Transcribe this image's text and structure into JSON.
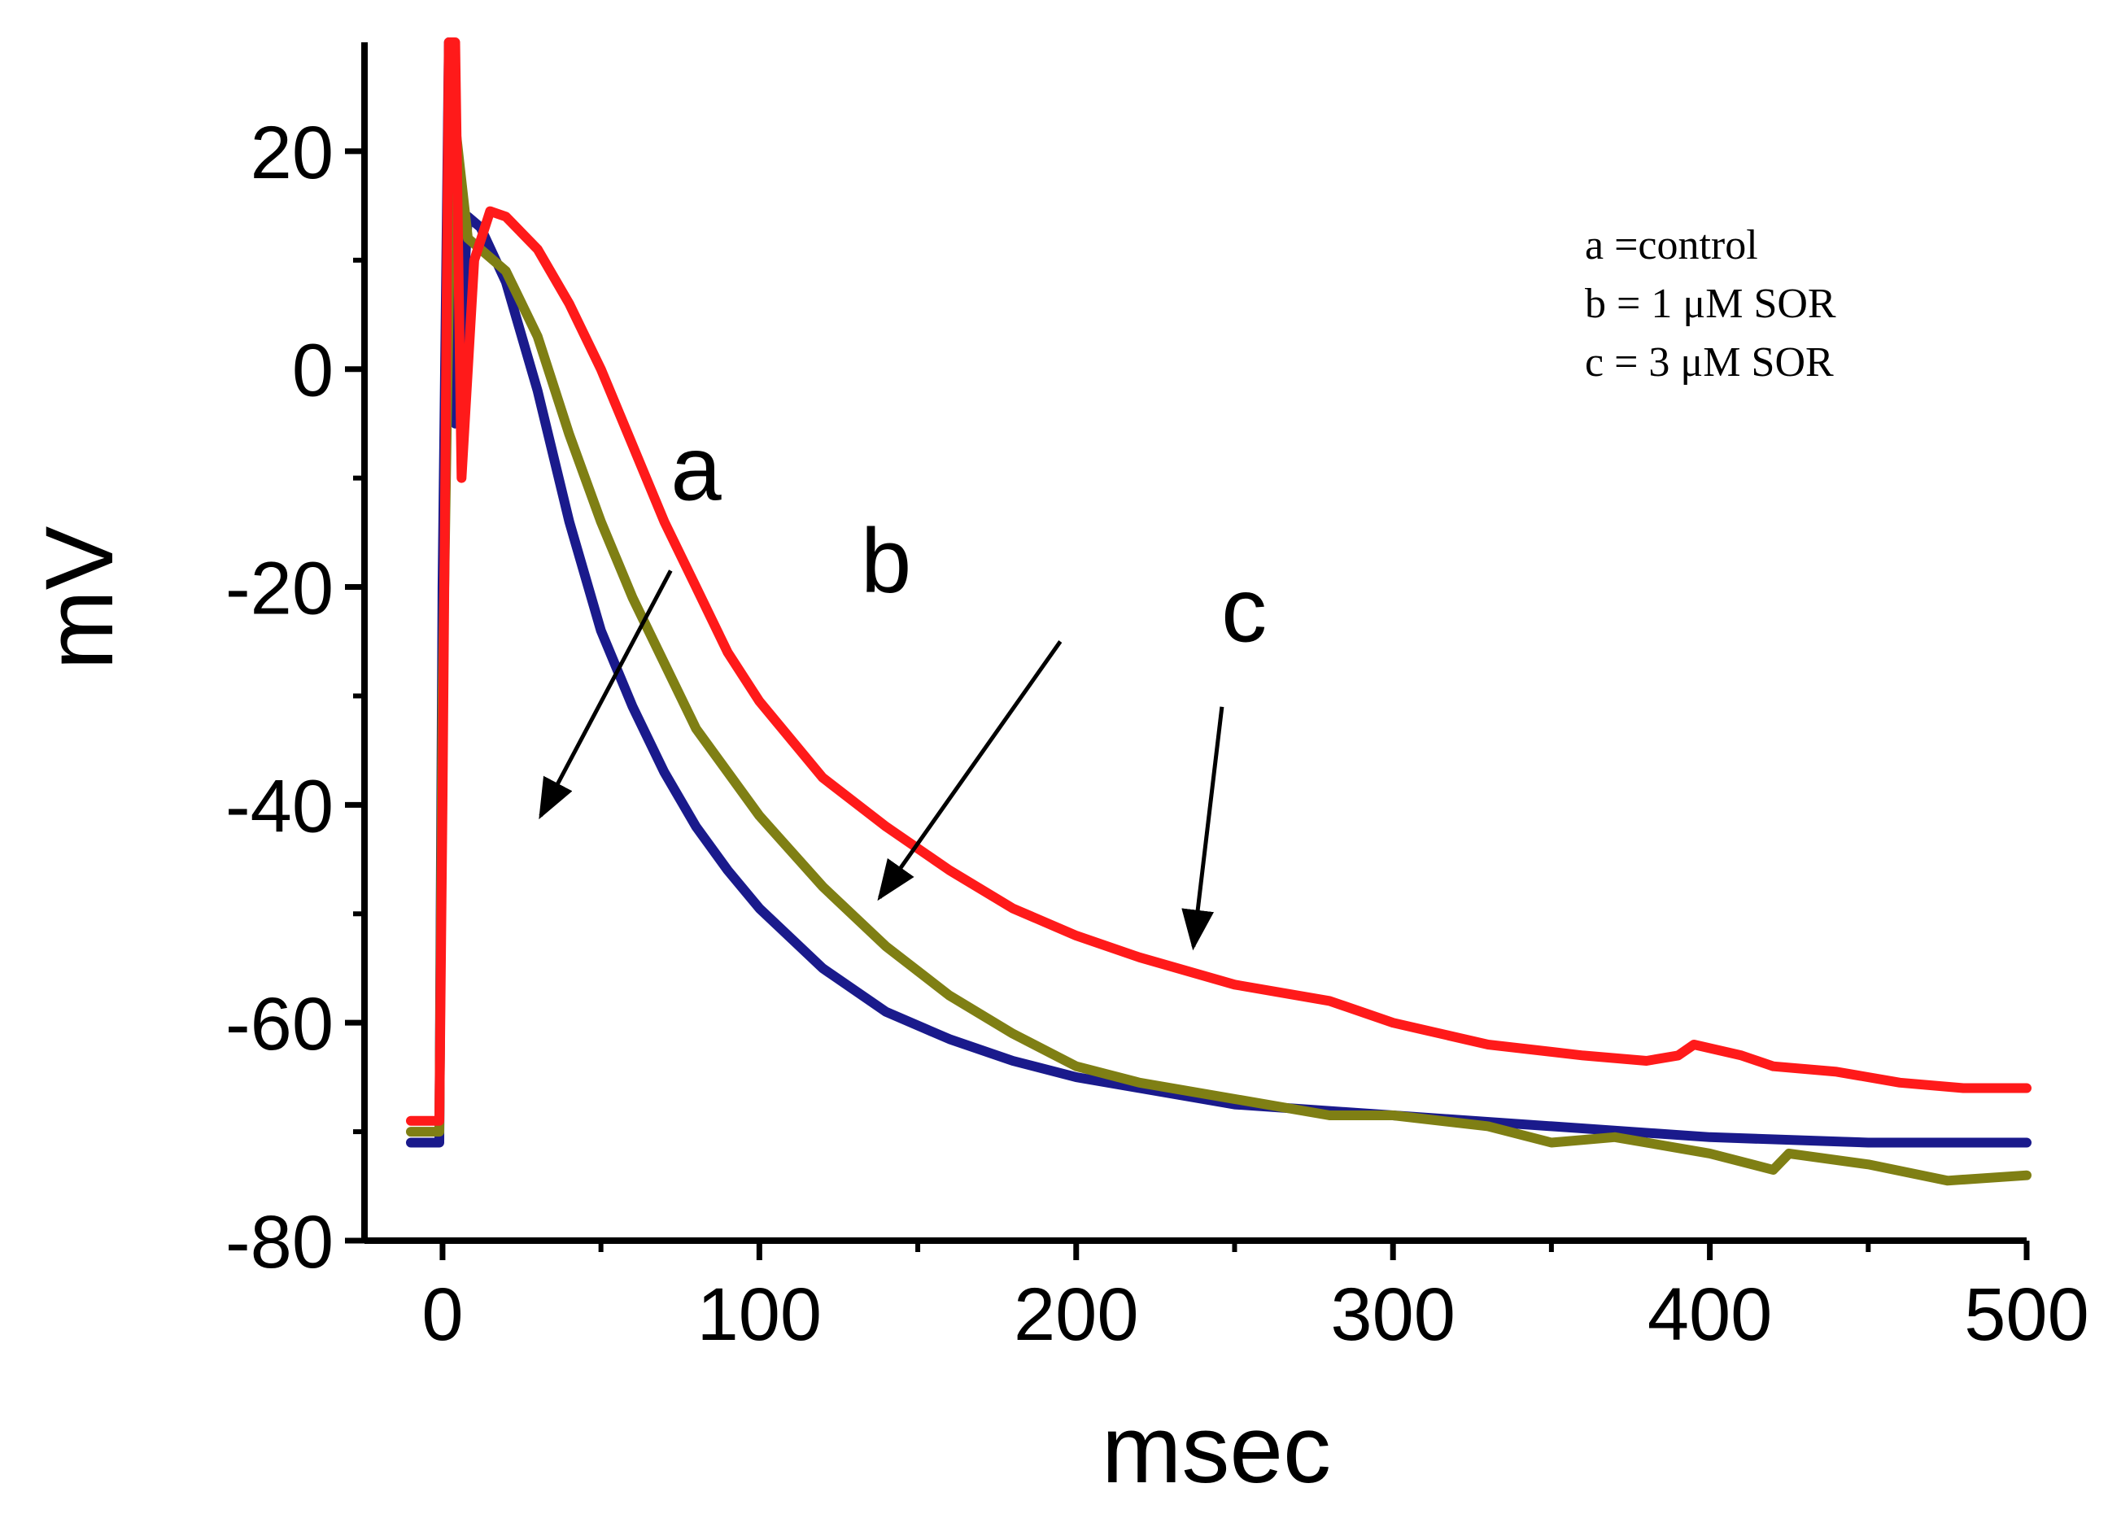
{
  "chart_data": {
    "type": "line",
    "title": "",
    "xlabel": "msec",
    "ylabel": "mV",
    "xlim": [
      -10,
      500
    ],
    "ylim": [
      -80,
      30
    ],
    "xticks": [
      0,
      100,
      200,
      300,
      400,
      500
    ],
    "xtick_labels": [
      "0",
      "100",
      "200",
      "300",
      "400",
      "500"
    ],
    "yticks": [
      -80,
      -60,
      -40,
      -20,
      0,
      20
    ],
    "ytick_labels": [
      "-80",
      "-60",
      "-40",
      "-20",
      "0",
      "20"
    ],
    "grid": false,
    "legend_position": "top-right",
    "legend": [
      "a =control",
      "b = 1 μM SOR",
      "c = 3 μM SOR"
    ],
    "series": [
      {
        "name": "a",
        "color": "#1a1a8c",
        "x": [
          -10,
          -1,
          0,
          2,
          4,
          8,
          12,
          20,
          30,
          40,
          50,
          60,
          70,
          80,
          90,
          100,
          120,
          140,
          160,
          180,
          200,
          220,
          250,
          300,
          350,
          400,
          450,
          500
        ],
        "y": [
          -71,
          -71,
          -20,
          30,
          -5,
          14,
          13,
          8,
          -2,
          -14,
          -24,
          -31,
          -37,
          -42,
          -46,
          -49.5,
          -55,
          -59,
          -61.5,
          -63.5,
          -65,
          -66,
          -67.5,
          -68.5,
          -69.5,
          -70.5,
          -71,
          -71
        ]
      },
      {
        "name": "b",
        "color": "#7f7f14",
        "x": [
          -10,
          -1,
          0,
          3,
          8,
          12,
          20,
          30,
          40,
          50,
          60,
          80,
          100,
          120,
          140,
          160,
          180,
          200,
          220,
          250,
          280,
          300,
          330,
          350,
          370,
          400,
          420,
          425,
          450,
          475,
          500
        ],
        "y": [
          -70,
          -70,
          -30,
          25,
          12,
          11,
          9,
          3,
          -6,
          -14,
          -21,
          -33,
          -41,
          -47.5,
          -53,
          -57.5,
          -61,
          -64,
          -65.5,
          -67,
          -68.5,
          -68.5,
          -69.5,
          -71,
          -70.5,
          -72,
          -73.5,
          -72,
          -73,
          -74.5,
          -74
        ]
      },
      {
        "name": "c",
        "color": "#ff1a1a",
        "x": [
          -10,
          -1,
          0,
          2,
          4,
          6,
          8,
          10,
          15,
          20,
          30,
          40,
          50,
          60,
          70,
          80,
          90,
          100,
          120,
          140,
          160,
          180,
          200,
          220,
          250,
          280,
          300,
          330,
          360,
          380,
          390,
          395,
          410,
          420,
          440,
          460,
          480,
          500
        ],
        "y": [
          -69,
          -69,
          -40,
          30,
          30,
          -10,
          0,
          10,
          14.5,
          14,
          11,
          6,
          0,
          -7,
          -14,
          -20,
          -26,
          -30.5,
          -37.5,
          -42,
          -46,
          -49.5,
          -52,
          -54,
          -56.5,
          -58,
          -60,
          -62,
          -63,
          -63.5,
          -63,
          -62,
          -63,
          -64,
          -64.5,
          -65.5,
          -66,
          -66
        ]
      }
    ],
    "annotations": [
      {
        "label": "a",
        "text_at": [
          80,
          -12
        ],
        "arrow_from": [
          72,
          -18.5
        ],
        "arrow_to": [
          31,
          -41
        ]
      },
      {
        "label": "b",
        "text_at": [
          140,
          -20.5
        ],
        "arrow_from": [
          195,
          -25
        ],
        "arrow_to": [
          138,
          -48.5
        ]
      },
      {
        "label": "c",
        "text_at": [
          253,
          -25
        ],
        "arrow_from": [
          246,
          -31
        ],
        "arrow_to": [
          237,
          -53
        ]
      }
    ]
  }
}
